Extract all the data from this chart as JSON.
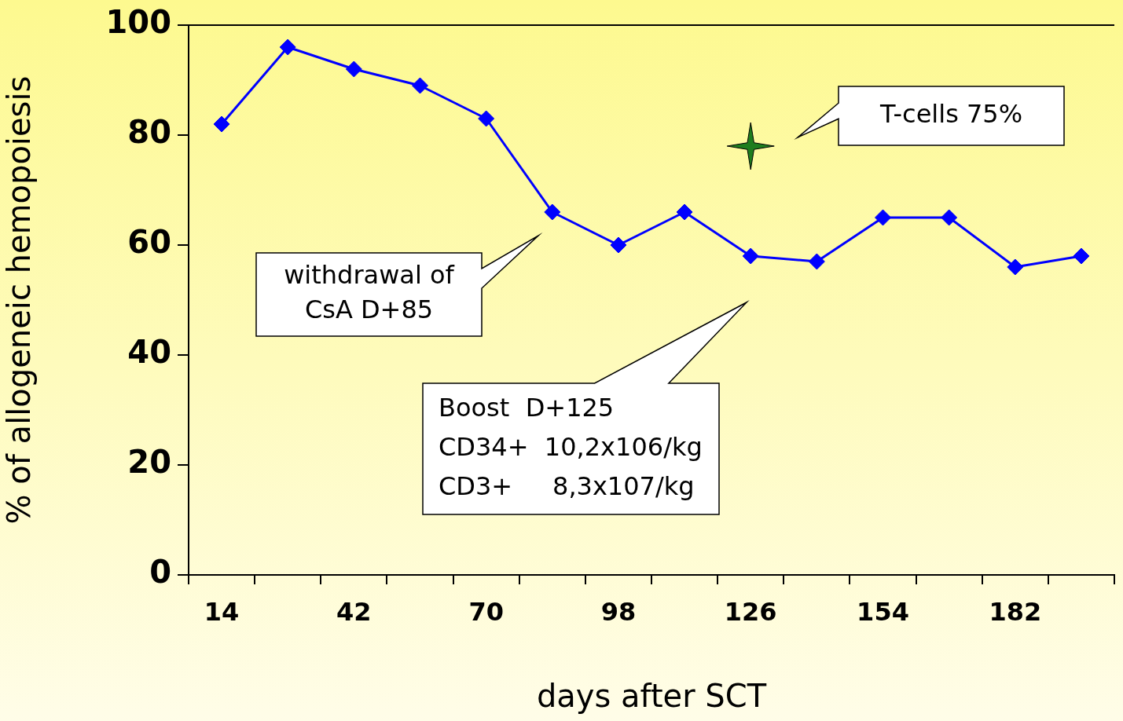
{
  "chart_data": {
    "type": "line",
    "xlabel": "days after SCT",
    "ylabel": "% of allogeneic hemopoiesis",
    "categories": [
      "14",
      null,
      "42",
      null,
      "70",
      null,
      "98",
      null,
      "126",
      null,
      "154",
      null,
      "182",
      null
    ],
    "series": [
      {
        "color": "#0000ff",
        "marker": "diamond",
        "values": [
          82,
          96,
          92,
          89,
          83,
          66,
          60,
          66,
          58,
          57,
          65,
          65,
          56,
          58
        ]
      },
      {
        "type": "scatter",
        "color": "#1e7d1e",
        "marker": "star",
        "x": [
          "126"
        ],
        "values": [
          78
        ]
      }
    ],
    "ylim": [
      0,
      100
    ],
    "yticks": [
      0,
      20,
      40,
      60,
      80,
      100
    ],
    "grid": false,
    "legend": false,
    "annotations": [
      "T-cells 75%",
      "withdrawal of\nCsA D+85",
      "Boost  D+125\nCD34+  10,2x106/kg\nCD3+     8,3x107/kg"
    ]
  }
}
